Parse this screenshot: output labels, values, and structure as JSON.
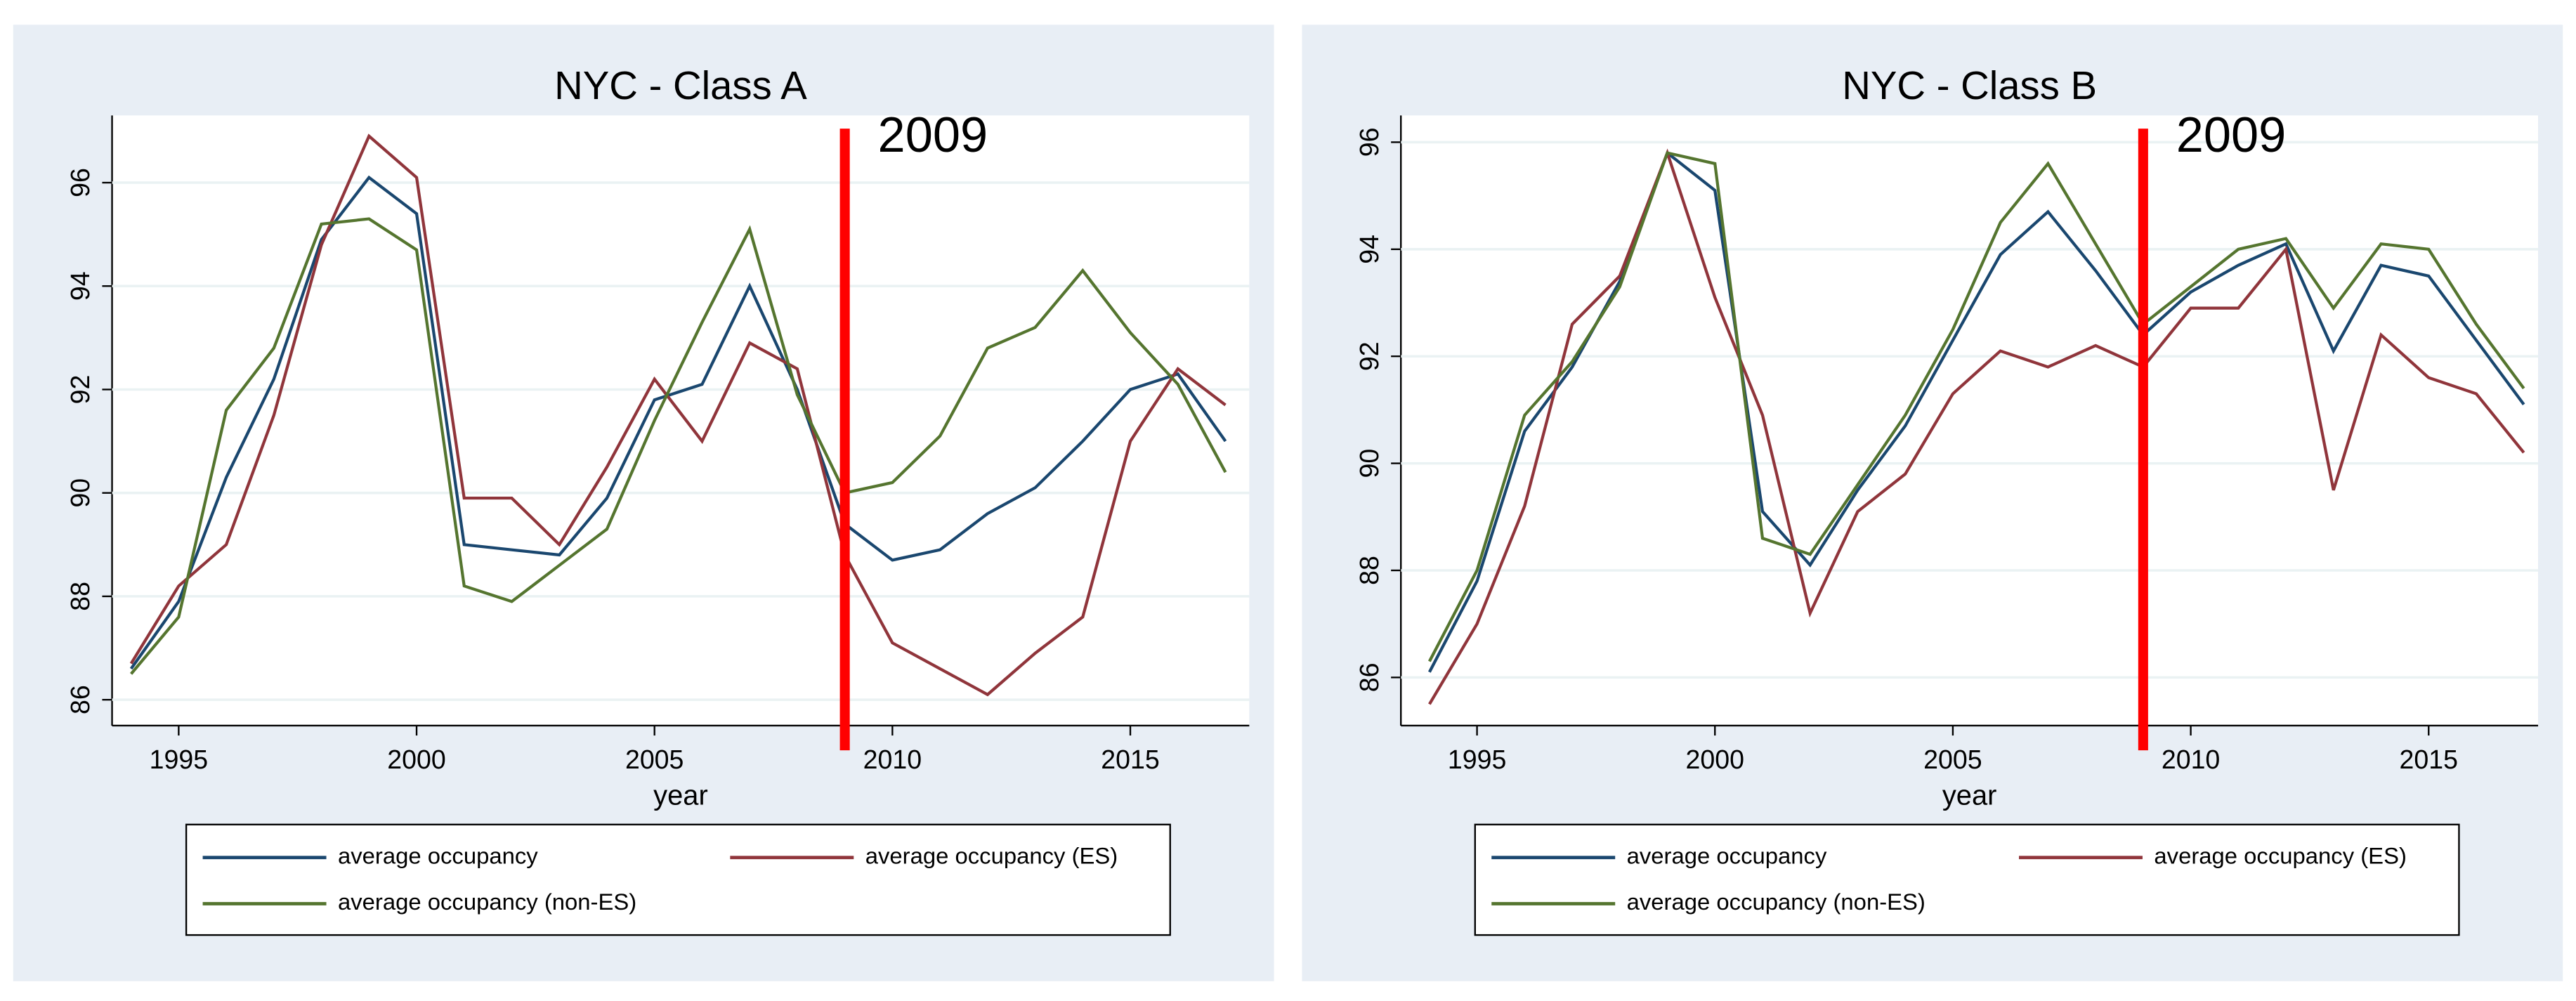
{
  "chart_data": [
    {
      "type": "line",
      "title": "NYC - Class A",
      "x_label": "year",
      "x": [
        1994,
        1995,
        1996,
        1997,
        1998,
        1999,
        2000,
        2001,
        2002,
        2003,
        2004,
        2005,
        2006,
        2007,
        2008,
        2009,
        2010,
        2011,
        2012,
        2013,
        2014,
        2015,
        2016,
        2017
      ],
      "series": [
        {
          "name": "average occupancy",
          "color": "#1a476f",
          "values": [
            86.6,
            87.9,
            90.3,
            92.2,
            94.9,
            96.1,
            95.4,
            89.0,
            88.9,
            88.8,
            89.9,
            91.8,
            92.1,
            94.0,
            92.0,
            89.4,
            88.7,
            88.9,
            89.6,
            90.1,
            91.0,
            92.0,
            92.3,
            91.0
          ]
        },
        {
          "name": "average occupancy (ES)",
          "color": "#90353b",
          "values": [
            86.7,
            88.2,
            89.0,
            91.5,
            94.8,
            96.9,
            96.1,
            89.9,
            89.9,
            89.0,
            90.5,
            92.2,
            91.0,
            92.9,
            92.4,
            88.8,
            87.1,
            86.6,
            86.1,
            86.9,
            87.6,
            91.0,
            92.4,
            91.7
          ]
        },
        {
          "name": "average occupancy (non-ES)",
          "color": "#55752f",
          "values": [
            86.5,
            87.6,
            91.6,
            92.8,
            95.2,
            95.3,
            94.7,
            88.2,
            87.9,
            88.6,
            89.3,
            91.4,
            93.3,
            95.1,
            91.9,
            90.0,
            90.2,
            91.1,
            92.8,
            93.2,
            94.3,
            93.1,
            92.1,
            90.4
          ]
        }
      ],
      "annotations": [
        {
          "x": 2009,
          "text": "2009",
          "color": "#ff0000"
        }
      ],
      "xlim": [
        1993.6,
        2017.5
      ],
      "xticks": [
        1995,
        2000,
        2005,
        2010,
        2015
      ],
      "ylim": [
        85.5,
        97.3
      ],
      "yticks": [
        86,
        88,
        90,
        92,
        94,
        96
      ],
      "grid": true,
      "legend": "bottom"
    },
    {
      "type": "line",
      "title": "NYC - Class B",
      "x_label": "year",
      "x": [
        1994,
        1995,
        1996,
        1997,
        1998,
        1999,
        2000,
        2001,
        2002,
        2003,
        2004,
        2005,
        2006,
        2007,
        2008,
        2009,
        2010,
        2011,
        2012,
        2013,
        2014,
        2015,
        2016,
        2017
      ],
      "series": [
        {
          "name": "average occupancy",
          "color": "#1a476f",
          "values": [
            86.1,
            87.8,
            90.6,
            91.8,
            93.4,
            95.8,
            95.1,
            89.1,
            88.1,
            89.5,
            90.7,
            92.3,
            93.9,
            94.7,
            93.6,
            92.4,
            93.2,
            93.7,
            94.1,
            92.1,
            93.7,
            93.5,
            92.3,
            91.1
          ]
        },
        {
          "name": "average occupancy (ES)",
          "color": "#90353b",
          "values": [
            85.5,
            87.0,
            89.2,
            92.6,
            93.5,
            95.8,
            93.1,
            90.9,
            87.2,
            89.1,
            89.8,
            91.3,
            92.1,
            91.8,
            92.2,
            91.8,
            92.9,
            92.9,
            94.0,
            89.5,
            92.4,
            91.6,
            91.3,
            90.2
          ]
        },
        {
          "name": "average occupancy (non-ES)",
          "color": "#55752f",
          "values": [
            86.3,
            88.0,
            90.9,
            91.9,
            93.3,
            95.8,
            95.6,
            88.6,
            88.3,
            89.6,
            90.9,
            92.5,
            94.5,
            95.6,
            94.1,
            92.6,
            93.3,
            94.0,
            94.2,
            92.9,
            94.1,
            94.0,
            92.6,
            91.4
          ]
        }
      ],
      "annotations": [
        {
          "x": 2009,
          "text": "2009",
          "color": "#ff0000"
        }
      ],
      "xlim": [
        1993.4,
        2017.3
      ],
      "xticks": [
        1995,
        2000,
        2005,
        2010,
        2015
      ],
      "ylim": [
        85.1,
        96.5
      ],
      "yticks": [
        86,
        88,
        90,
        92,
        94,
        96
      ],
      "grid": true,
      "legend": "bottom"
    }
  ]
}
